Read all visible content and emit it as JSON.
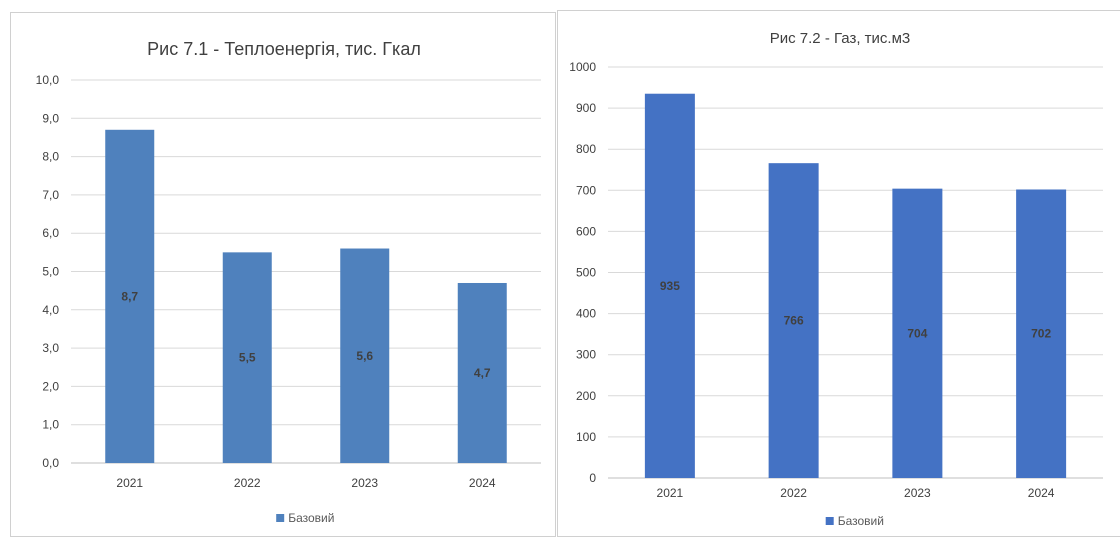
{
  "chart_data": [
    {
      "type": "bar",
      "title": "Рис 7.1 - Теплоенергія, тис. Гкал",
      "categories": [
        "2021",
        "2022",
        "2023",
        "2024"
      ],
      "series": [
        {
          "name": "Базовий",
          "values": [
            8.7,
            5.5,
            5.6,
            4.7
          ],
          "data_labels": [
            "8,7",
            "5,5",
            "5,6",
            "4,7"
          ]
        }
      ],
      "ylim": [
        0,
        10
      ],
      "y_ticks": [
        "0,0",
        "1,0",
        "2,0",
        "3,0",
        "4,0",
        "5,0",
        "6,0",
        "7,0",
        "8,0",
        "9,0",
        "10,0"
      ],
      "grid": true,
      "legend": "bottom",
      "color": "#4f81bd",
      "xlabel": "",
      "ylabel": ""
    },
    {
      "type": "bar",
      "title": "Рис 7.2 - Газ, тис.м3",
      "categories": [
        "2021",
        "2022",
        "2023",
        "2024"
      ],
      "series": [
        {
          "name": "Базовий",
          "values": [
            935,
            766,
            704,
            702
          ],
          "data_labels": [
            "935",
            "766",
            "704",
            "702"
          ]
        }
      ],
      "ylim": [
        0,
        1000
      ],
      "y_ticks": [
        "0",
        "100",
        "200",
        "300",
        "400",
        "500",
        "600",
        "700",
        "800",
        "900",
        "1000"
      ],
      "grid": true,
      "legend": "bottom",
      "color": "#4472c4",
      "xlabel": "",
      "ylabel": ""
    }
  ]
}
